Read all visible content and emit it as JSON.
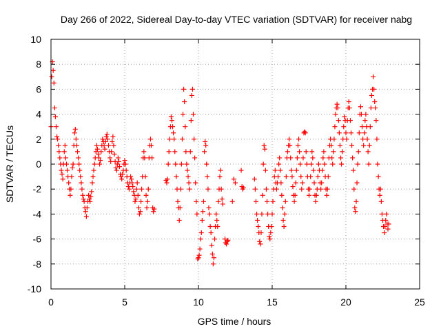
{
  "chart_data": {
    "type": "scatter",
    "title": "Day 266 of 2022, Sidereal Day-to-day VTEC variation (SDTVAR) for receiver nabg",
    "xlabel": "GPS time / hours",
    "ylabel": "SDTVAR / TECUs",
    "xlim": [
      0,
      25
    ],
    "ylim": [
      -10,
      10
    ],
    "grid": true,
    "marker": "plus",
    "colors": {
      "series": "#ff0000",
      "grid": "#a0a0a0",
      "axis": "#000000",
      "background": "#ffffff"
    },
    "x_tick_labels": [
      "0",
      "5",
      "10",
      "15",
      "20",
      "25"
    ],
    "y_tick_labels": [
      "-10",
      "-8",
      "-6",
      "-4",
      "-2",
      "0",
      "2",
      "4",
      "6",
      "8",
      "10"
    ],
    "segments": [
      {
        "x": [
          0.0,
          0.05,
          0.1,
          0.15,
          0.2,
          0.25,
          0.3,
          0.35,
          0.4,
          0.45,
          0.5,
          0.55,
          0.6,
          0.65,
          0.7,
          0.75,
          0.8,
          0.85,
          0.9,
          0.95,
          1.0,
          1.05,
          1.1,
          1.15,
          1.2,
          1.25,
          1.3,
          1.35,
          1.4,
          1.45,
          1.5
        ],
        "y": [
          3.0,
          7.0,
          8.2,
          7.5,
          6.5,
          4.5,
          3.8,
          3.0,
          2.2,
          2.0,
          1.5,
          1.0,
          0.5,
          0.0,
          -0.5,
          -0.8,
          -1.2,
          0.0,
          1.0,
          1.5,
          0.5,
          0.0,
          -0.5,
          -1.0,
          -1.5,
          -2.0,
          -2.5,
          -2.0,
          -1.0,
          -0.3,
          0.0
        ]
      },
      {
        "x": [
          1.55,
          1.6,
          1.65,
          1.7,
          1.75,
          1.8,
          1.85,
          1.9,
          1.95,
          2.0,
          2.05,
          2.1,
          2.15,
          2.2,
          2.25,
          2.3,
          2.35,
          2.4,
          2.45,
          2.5
        ],
        "y": [
          1.5,
          2.5,
          2.8,
          2.0,
          1.5,
          1.0,
          0.5,
          0.0,
          -0.5,
          -1.0,
          -1.5,
          -2.0,
          -2.5,
          -2.8,
          -3.0,
          -3.5,
          -3.8,
          -4.2,
          -3.5,
          -3.0
        ]
      },
      {
        "x": [
          2.55,
          2.6,
          2.65,
          2.7,
          2.75,
          2.8,
          2.85,
          2.9,
          2.95,
          3.0,
          3.05,
          3.1,
          3.15,
          3.2,
          3.25,
          3.3,
          3.35,
          3.4,
          3.45,
          3.5,
          3.55,
          3.6,
          3.65,
          3.7,
          3.75,
          3.8,
          3.85,
          3.9,
          3.95,
          4.0
        ],
        "y": [
          -2.5,
          -2.8,
          -3.0,
          -2.6,
          -2.2,
          -1.5,
          -1.0,
          -0.5,
          0.0,
          0.5,
          1.0,
          1.5,
          1.2,
          0.8,
          0.5,
          0.0,
          0.3,
          1.0,
          1.5,
          2.0,
          1.8,
          1.5,
          1.2,
          1.8,
          2.2,
          2.4,
          2.0,
          1.5,
          1.0,
          0.5
        ]
      },
      {
        "x": [
          4.05,
          4.1,
          4.15,
          4.2,
          4.25,
          4.3,
          4.35,
          4.4,
          4.45,
          4.5,
          4.55,
          4.6,
          4.65,
          4.7,
          4.75,
          4.8,
          4.85,
          4.9,
          4.95,
          5.0,
          5.05,
          5.1,
          5.15,
          5.2,
          5.25,
          5.3,
          5.35,
          5.4,
          5.45,
          5.5
        ],
        "y": [
          0.2,
          1.0,
          1.8,
          2.2,
          1.5,
          0.8,
          0.2,
          -0.3,
          -0.5,
          0.0,
          0.5,
          0.2,
          -0.2,
          -0.8,
          -1.0,
          -1.2,
          -0.8,
          -0.5,
          0.0,
          0.3,
          0.0,
          -0.5,
          -1.0,
          -1.5,
          -1.8,
          -2.0,
          -1.5,
          -1.0,
          -1.2,
          -1.5
        ]
      },
      {
        "x": [
          5.55,
          5.6,
          5.65,
          5.7,
          5.75,
          5.8,
          5.85,
          5.9,
          5.95,
          6.0,
          6.05,
          6.1,
          6.15,
          6.2,
          6.25,
          6.3,
          6.35
        ],
        "y": [
          -1.8,
          -2.2,
          -2.5,
          -3.0,
          -2.8,
          -2.0,
          -1.5,
          -2.5,
          -3.5,
          -4.0,
          -3.8,
          -3.0,
          -2.0,
          -1.0,
          0.5,
          1.0,
          0.5
        ]
      },
      {
        "x": [
          6.4,
          6.45,
          6.5,
          6.55,
          6.6,
          6.65,
          6.7,
          6.75,
          6.8,
          6.85,
          6.9,
          6.95,
          7.0
        ],
        "y": [
          -1.0,
          -2.5,
          -3.5,
          -3.0,
          -2.0,
          0.5,
          1.5,
          2.0,
          1.5,
          0.5,
          -3.5,
          -3.8,
          -3.6
        ]
      },
      {
        "x": [
          7.8,
          7.85,
          7.9,
          7.95,
          8.0,
          8.05,
          8.1,
          8.15,
          8.2,
          8.25,
          8.3,
          8.35,
          8.4,
          8.45,
          8.5,
          8.55,
          8.6,
          8.65,
          8.7,
          8.75,
          8.8,
          8.85,
          8.9,
          8.95,
          9.0,
          9.05,
          9.1,
          9.15,
          9.2,
          9.25,
          9.3,
          9.35,
          9.4,
          9.45,
          9.5,
          9.55,
          9.6,
          9.65,
          9.7
        ],
        "y": [
          -1.3,
          -1.5,
          -1.2,
          0.0,
          1.0,
          2.0,
          3.0,
          3.8,
          3.5,
          3.0,
          2.5,
          2.0,
          1.0,
          0.0,
          -1.0,
          -2.0,
          -3.0,
          -3.5,
          -4.5,
          -3.5,
          -2.0,
          0.0,
          2.0,
          4.0,
          6.0,
          5.0,
          3.0,
          1.0,
          0.0,
          -0.5,
          -1.0,
          -1.5,
          -2.0,
          1.0,
          3.5,
          5.5,
          6.0,
          4.0,
          2.0
        ]
      },
      {
        "x": [
          9.75,
          9.8,
          9.85,
          9.9,
          9.95,
          10.0,
          10.05,
          10.1,
          10.15,
          10.2,
          10.25,
          10.3,
          10.35,
          10.4,
          10.45,
          10.5,
          10.55,
          10.6,
          10.65,
          10.7,
          10.75,
          10.8,
          10.85,
          10.9,
          10.95,
          11.0,
          11.05,
          11.1,
          11.15,
          11.2,
          11.25,
          11.3,
          11.35,
          11.4,
          11.45,
          11.5,
          11.55,
          11.6,
          11.65
        ],
        "y": [
          0.5,
          -1.5,
          -3.0,
          -4.0,
          -7.6,
          -7.5,
          -7.3,
          -6.8,
          -6.0,
          -5.5,
          -4.5,
          -3.8,
          -3.0,
          1.0,
          1.8,
          1.5,
          0.0,
          -1.0,
          -2.0,
          -3.5,
          -4.0,
          -5.0,
          -5.5,
          -6.5,
          -7.2,
          -8.0,
          -7.5,
          -6.0,
          -5.0,
          -4.0,
          -4.5,
          -5.0,
          -3.0,
          -2.0,
          -1.0,
          -0.5,
          -2.0,
          -2.8,
          -3.2
        ]
      },
      {
        "x": [
          11.8,
          11.85,
          11.9,
          11.95,
          12.0,
          12.3,
          12.4,
          12.5,
          12.9,
          12.95,
          13.0,
          13.05
        ],
        "y": [
          -6.0,
          -6.3,
          -6.4,
          -6.2,
          -6.1,
          -3.0,
          -1.2,
          -1.5,
          -0.5,
          -1.8,
          -2.0,
          -1.9
        ]
      },
      {
        "x": [
          13.8,
          13.85,
          13.9,
          13.95,
          14.0,
          14.05,
          14.1,
          14.15,
          14.2,
          14.25,
          14.3,
          14.35,
          14.4,
          14.45,
          14.5,
          14.55,
          14.6,
          14.65,
          14.7,
          14.75,
          14.8,
          14.85,
          14.9,
          14.95,
          15.0,
          15.05,
          15.1,
          15.15,
          15.2,
          15.25,
          15.3,
          15.35,
          15.4,
          15.45,
          15.5,
          15.55,
          15.6,
          15.65,
          15.7,
          15.75,
          15.8,
          15.85,
          15.9,
          15.95,
          16.0
        ],
        "y": [
          -1.2,
          -2.0,
          -3.0,
          -4.0,
          -4.5,
          -5.0,
          -5.5,
          -6.2,
          -6.4,
          -5.5,
          -4.0,
          -2.5,
          0.0,
          1.5,
          1.2,
          -0.5,
          -2.0,
          -3.0,
          -4.0,
          -5.0,
          -5.8,
          -6.0,
          -5.5,
          -5.0,
          -4.0,
          -3.0,
          -2.0,
          -1.0,
          -0.5,
          -1.5,
          -2.0,
          -1.5,
          -1.0,
          0.0,
          0.5,
          -0.5,
          -1.5,
          -2.5,
          -3.5,
          -4.5,
          -5.0,
          -4.0,
          -3.0,
          -1.0,
          0.5
        ]
      },
      {
        "x": [
          16.05,
          16.1,
          16.15,
          16.2,
          16.25,
          16.3,
          16.35,
          16.4,
          16.45,
          16.5,
          16.55,
          16.6,
          16.65,
          16.7,
          16.75,
          16.8,
          16.85,
          16.9,
          16.95,
          17.0,
          17.05,
          17.1,
          17.15,
          17.2,
          17.25,
          17.3,
          17.35,
          17.4,
          17.45,
          17.5,
          17.55,
          17.6,
          17.65,
          17.7,
          17.75,
          17.8,
          17.85,
          17.9,
          17.95,
          18.0
        ],
        "y": [
          1.0,
          1.5,
          2.0,
          1.5,
          0.5,
          -0.5,
          -1.0,
          -1.8,
          -2.5,
          -3.0,
          -2.5,
          -1.5,
          -0.5,
          0.5,
          1.5,
          2.0,
          1.0,
          0.0,
          -1.0,
          -2.0,
          -1.5,
          0.5,
          2.5,
          2.6,
          2.5,
          1.0,
          0.0,
          -1.0,
          -2.0,
          -2.5,
          -2.0,
          -1.0,
          0.0,
          1.0,
          0.5,
          -0.5,
          -1.5,
          -2.5,
          -3.0,
          -2.5
        ]
      },
      {
        "x": [
          18.05,
          18.1,
          18.15,
          18.2,
          18.25,
          18.3,
          18.35,
          18.4,
          18.45,
          18.5,
          18.55,
          18.6,
          18.65,
          18.7,
          18.75,
          18.8,
          18.85,
          18.9,
          18.95,
          19.0,
          19.05,
          19.1,
          19.15,
          19.2,
          19.25,
          19.3,
          19.35,
          19.4,
          19.45,
          19.5,
          19.55,
          19.6,
          19.65,
          19.7,
          19.75,
          19.8,
          19.85,
          19.9,
          19.95,
          20.0
        ],
        "y": [
          -2.0,
          -1.0,
          0.0,
          -0.5,
          -1.5,
          -2.0,
          -1.5,
          -0.5,
          0.5,
          1.0,
          0.0,
          -1.0,
          -2.0,
          -2.5,
          -2.0,
          -1.0,
          0.5,
          1.5,
          2.0,
          1.5,
          0.5,
          0.0,
          1.0,
          2.0,
          3.0,
          4.0,
          4.5,
          4.8,
          4.5,
          3.5,
          2.5,
          1.5,
          0.5,
          0.0,
          1.0,
          2.0,
          3.0,
          3.8,
          3.5,
          2.5
        ]
      },
      {
        "x": [
          20.05,
          20.1,
          20.15,
          20.2,
          20.25,
          20.3,
          20.35,
          20.4,
          20.45,
          20.5,
          20.55,
          20.6,
          20.65,
          20.7,
          20.75,
          20.8,
          20.85,
          20.9,
          20.95,
          21.0,
          21.05,
          21.1,
          21.15,
          21.2,
          21.25,
          21.3,
          21.35,
          21.4,
          21.45,
          21.5,
          21.55,
          21.6,
          21.65,
          21.7,
          21.75,
          21.8,
          21.85,
          21.9,
          21.95,
          22.0
        ],
        "y": [
          2.0,
          3.5,
          4.5,
          5.0,
          4.5,
          3.5,
          2.5,
          1.5,
          0.5,
          -0.5,
          -2.0,
          -3.5,
          -3.8,
          -3.0,
          -1.5,
          0.0,
          1.0,
          2.5,
          4.0,
          4.6,
          4.0,
          3.0,
          2.0,
          1.5,
          2.5,
          3.5,
          4.0,
          3.0,
          2.0,
          1.0,
          0.0,
          1.5,
          3.0,
          4.5,
          5.5,
          6.0,
          7.0,
          6.0,
          5.0,
          4.5
        ]
      },
      {
        "x": [
          22.05,
          22.1,
          22.15,
          22.2,
          22.25,
          22.3,
          22.35,
          22.4,
          22.45,
          22.5,
          22.55,
          22.6,
          22.65,
          22.7,
          22.75,
          22.8,
          22.85,
          22.9
        ],
        "y": [
          3.5,
          2.0,
          0.0,
          -1.0,
          -2.0,
          -2.5,
          -2.0,
          -3.0,
          -4.0,
          -4.5,
          -5.0,
          -5.5,
          -5.0,
          -4.5,
          -4.0,
          -4.8,
          -5.2,
          -4.8
        ]
      }
    ]
  }
}
